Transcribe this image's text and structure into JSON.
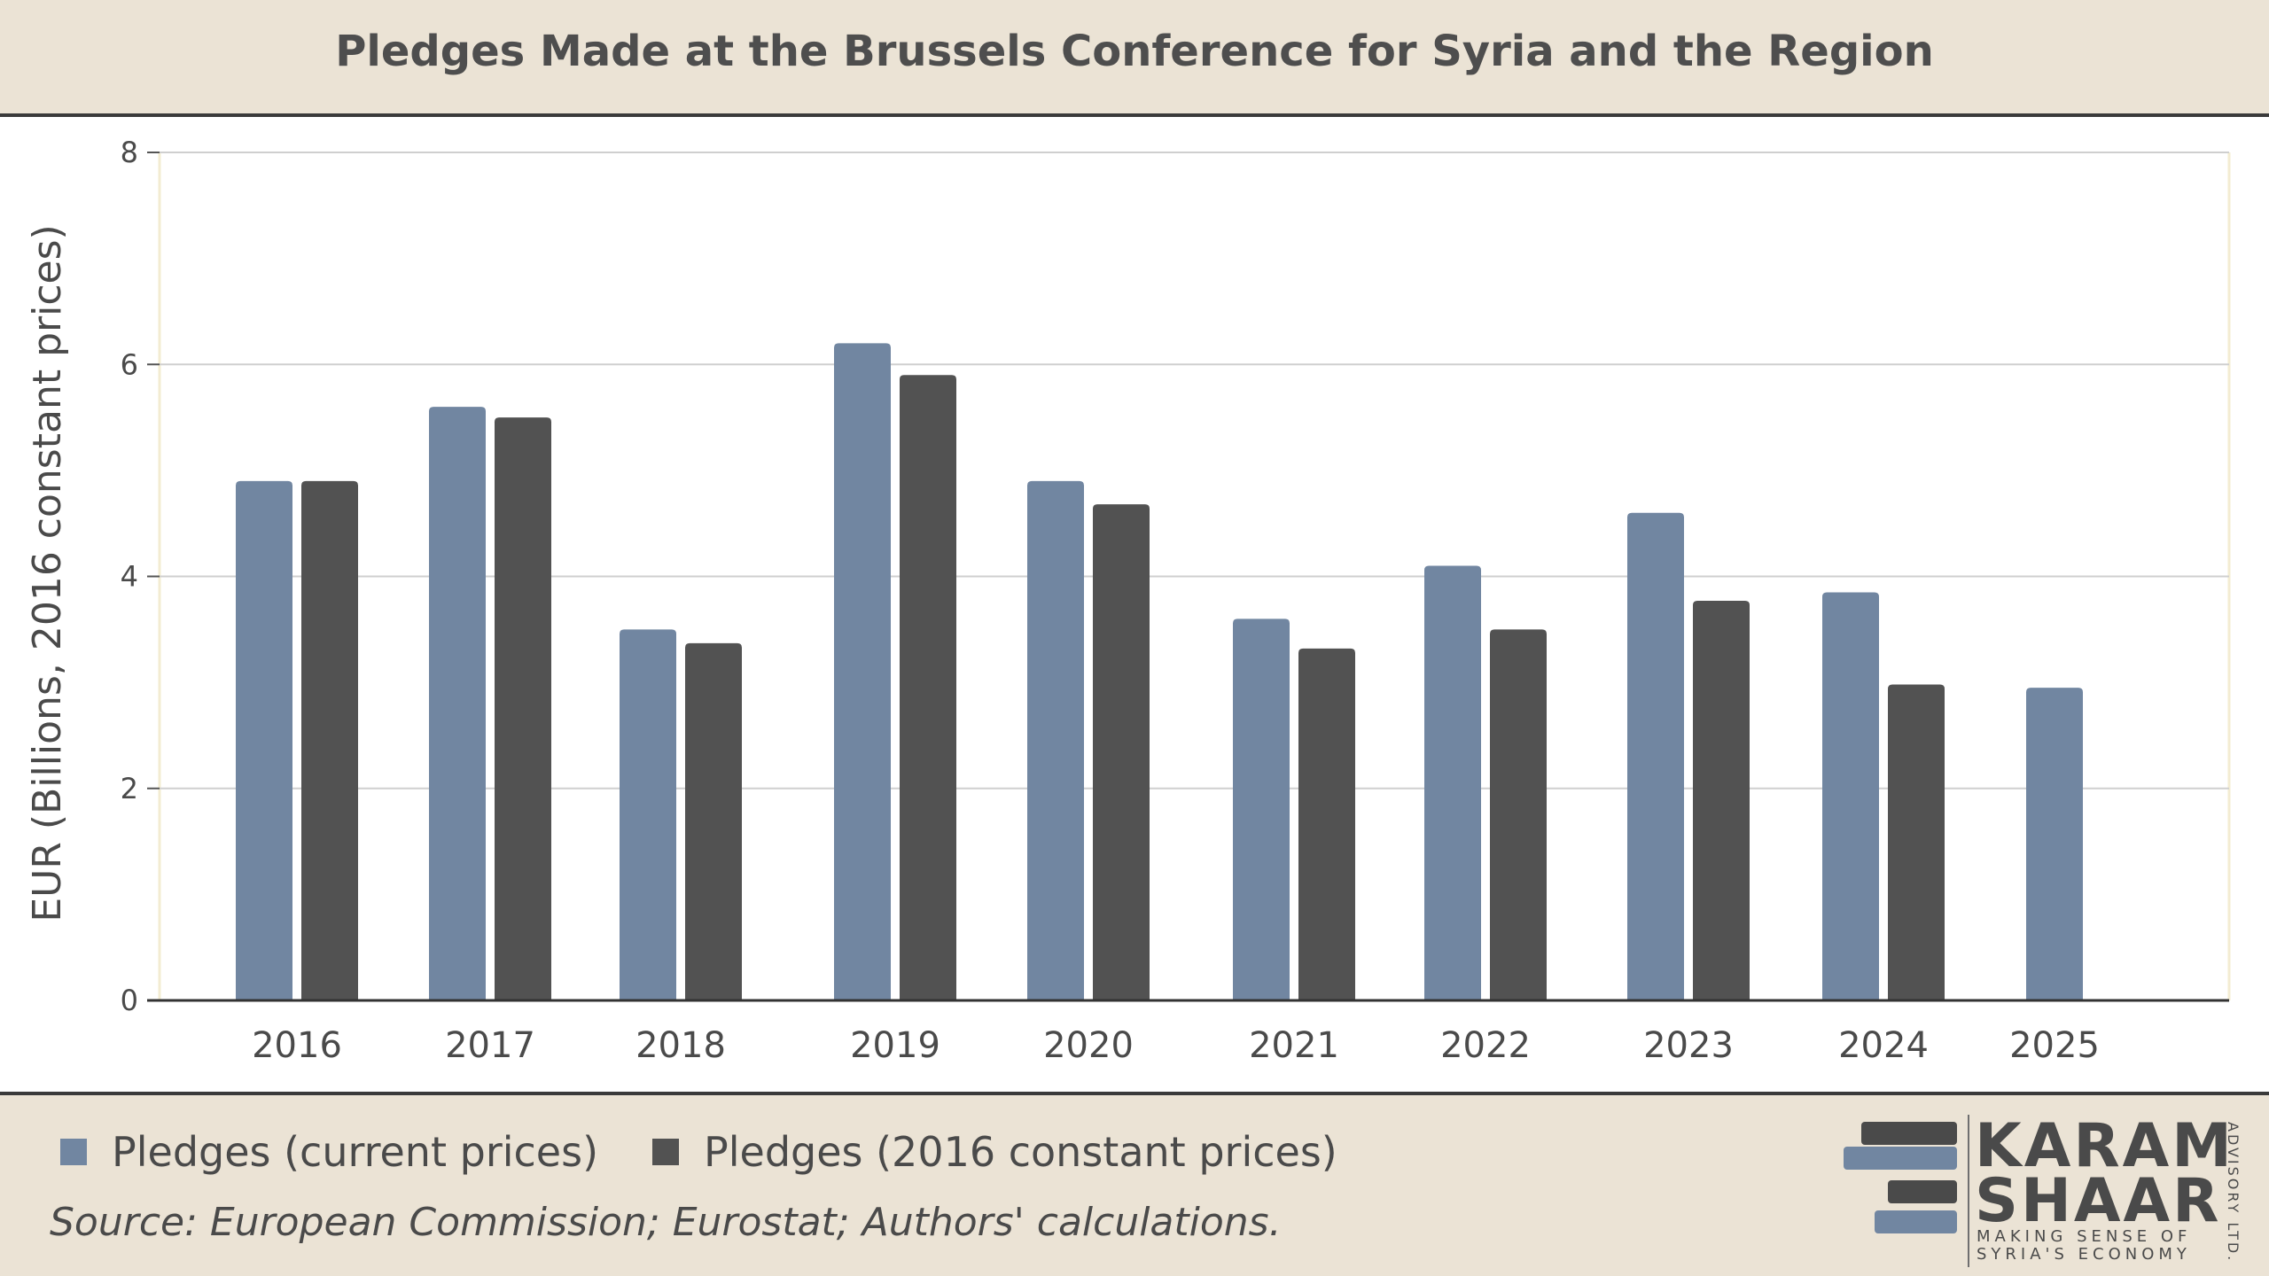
{
  "header": {
    "title": "Pledges Made at the Brussels Conference for Syria and the Region"
  },
  "chart_data": {
    "type": "bar",
    "title": "Pledges Made at the Brussels Conference for Syria and the Region",
    "xlabel": "",
    "ylabel": "EUR (Billions, 2016 constant prices)",
    "ylim": [
      0,
      8
    ],
    "yticks": [
      0,
      2,
      4,
      6,
      8
    ],
    "grid": true,
    "legend_position": "bottom-left",
    "categories": [
      "2016",
      "2017",
      "2018",
      "2019",
      "2020",
      "2021",
      "2022",
      "2023",
      "2024",
      "2025"
    ],
    "series": [
      {
        "name": "Pledges (current prices)",
        "color": "#7186a1",
        "values": [
          4.9,
          5.6,
          3.5,
          6.2,
          4.9,
          3.6,
          4.1,
          4.6,
          3.85,
          2.95
        ]
      },
      {
        "name": "Pledges (2016 constant prices)",
        "color": "#525252",
        "values": [
          4.9,
          5.5,
          3.37,
          5.9,
          4.68,
          3.32,
          3.5,
          3.77,
          2.98,
          null
        ]
      }
    ]
  },
  "footer": {
    "legend": [
      {
        "label": "Pledges (current prices)",
        "color": "#7186a1"
      },
      {
        "label": "Pledges (2016 constant prices)",
        "color": "#525252"
      }
    ],
    "source": "Source: European Commission; Eurostat; Authors' calculations."
  },
  "logo": {
    "line1": "KARAM",
    "line2": "SHAAR",
    "tagline1": "MAKING SENSE OF",
    "tagline2": "SYRIA'S ECONOMY",
    "side": "ADVISORY LTD.",
    "color_dark": "#4a4a4a",
    "color_blue": "#7186a1"
  }
}
